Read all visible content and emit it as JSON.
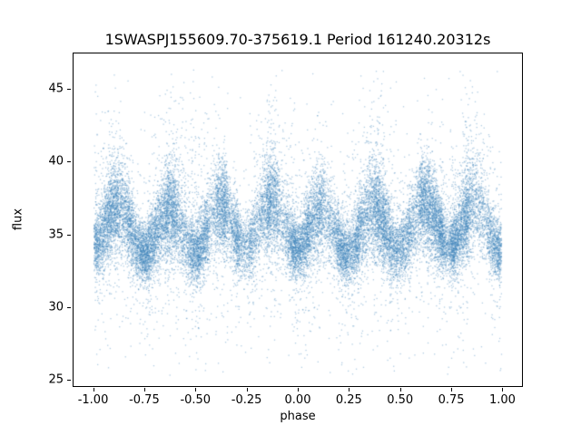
{
  "title": "1SWASPJ155609.70-375619.1 Period 161240.20312s",
  "chart_data": {
    "type": "scatter",
    "title": "1SWASPJ155609.70-375619.1 Period 161240.20312s",
    "xlabel": "phase",
    "ylabel": "flux",
    "xlim": [
      -1.1,
      1.1
    ],
    "ylim": [
      24.5,
      47.5
    ],
    "x_tick_labels": [
      "-1.00",
      "-0.75",
      "-0.50",
      "-0.25",
      "0.00",
      "0.25",
      "0.50",
      "0.75",
      "1.00"
    ],
    "x_tick_values": [
      -1.0,
      -0.75,
      -0.5,
      -0.25,
      0.0,
      0.25,
      0.5,
      0.75,
      1.0
    ],
    "y_tick_labels": [
      "25",
      "30",
      "35",
      "40",
      "45"
    ],
    "y_tick_values": [
      25,
      30,
      35,
      40,
      45
    ],
    "grid": false,
    "legend": null,
    "point_color": "#3d82b8",
    "point_alpha": 0.4,
    "n_points": 28000,
    "model": {
      "description": "dense phase-folded light curve: flux oscillates around baseline with ~0.25-phase period; dense band 32-40, sparse outliers up to ~46.4 and down to ~25.2; vertical striping from uneven sampling",
      "x_range": [
        -1.0,
        1.0
      ],
      "baseline_flux": 35.4,
      "oscillation_amplitude": 1.5,
      "oscillation_period_phase": 0.25,
      "oscillation_phase_offset": 0.12,
      "noise_sigma": 1.35,
      "upper_outlier_fraction": 0.06,
      "lower_outlier_fraction": 0.05,
      "outlier_scale": 2.6,
      "flux_min": 25.2,
      "flux_max": 46.4,
      "columns": 64,
      "seed": 42
    }
  }
}
